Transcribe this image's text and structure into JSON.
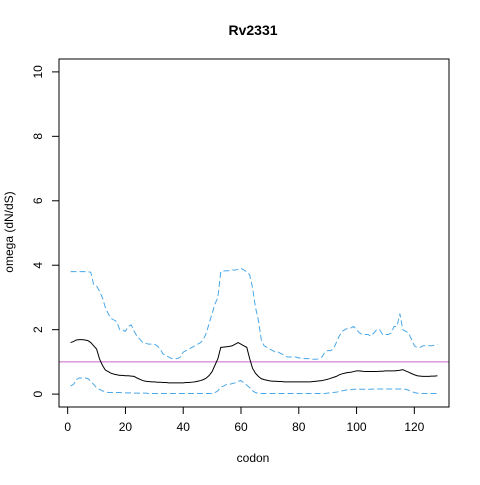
{
  "chart_data": {
    "type": "line",
    "title": "Rv2331",
    "xlabel": "codon",
    "ylabel": "omega (dN/dS)",
    "xlim": [
      -3,
      132
    ],
    "ylim": [
      -0.4,
      10.4
    ],
    "x_ticks": [
      0,
      20,
      40,
      60,
      80,
      100,
      120
    ],
    "y_ticks": [
      0,
      2,
      4,
      6,
      8,
      10
    ],
    "reference_line": {
      "y": 1.0,
      "color": "#cc66cc"
    },
    "colors": {
      "estimate": "#000000",
      "bounds": "#4aa8e8"
    },
    "x": [
      1,
      2,
      3,
      4,
      5,
      6,
      7,
      8,
      9,
      10,
      11,
      12,
      13,
      14,
      15,
      16,
      17,
      18,
      19,
      20,
      21,
      22,
      23,
      24,
      25,
      26,
      27,
      28,
      29,
      30,
      31,
      32,
      33,
      34,
      35,
      36,
      37,
      38,
      39,
      40,
      41,
      42,
      43,
      44,
      45,
      46,
      47,
      48,
      49,
      50,
      51,
      52,
      53,
      54,
      55,
      56,
      57,
      58,
      59,
      60,
      61,
      62,
      63,
      64,
      65,
      66,
      67,
      68,
      69,
      70,
      71,
      72,
      73,
      74,
      75,
      76,
      77,
      78,
      79,
      80,
      81,
      82,
      83,
      84,
      85,
      86,
      87,
      88,
      89,
      90,
      91,
      92,
      93,
      94,
      95,
      96,
      97,
      98,
      99,
      100,
      101,
      102,
      103,
      104,
      105,
      106,
      107,
      108,
      109,
      110,
      111,
      112,
      113,
      114,
      115,
      116,
      117,
      118,
      119,
      120,
      121,
      122,
      123,
      124,
      125,
      126,
      127,
      128
    ],
    "series": [
      {
        "role": "estimate",
        "values": [
          1.6,
          1.63,
          1.68,
          1.69,
          1.69,
          1.68,
          1.66,
          1.6,
          1.5,
          1.4,
          1.1,
          0.9,
          0.75,
          0.7,
          0.65,
          0.62,
          0.6,
          0.58,
          0.58,
          0.57,
          0.57,
          0.56,
          0.55,
          0.5,
          0.46,
          0.42,
          0.4,
          0.39,
          0.38,
          0.38,
          0.37,
          0.37,
          0.36,
          0.36,
          0.35,
          0.35,
          0.35,
          0.35,
          0.35,
          0.35,
          0.36,
          0.36,
          0.37,
          0.38,
          0.4,
          0.42,
          0.45,
          0.5,
          0.58,
          0.7,
          0.9,
          1.1,
          1.45,
          1.46,
          1.47,
          1.48,
          1.5,
          1.55,
          1.6,
          1.55,
          1.5,
          1.45,
          1.1,
          0.8,
          0.65,
          0.55,
          0.48,
          0.45,
          0.43,
          0.41,
          0.4,
          0.4,
          0.39,
          0.39,
          0.38,
          0.38,
          0.38,
          0.38,
          0.38,
          0.38,
          0.38,
          0.38,
          0.38,
          0.38,
          0.39,
          0.4,
          0.41,
          0.42,
          0.44,
          0.46,
          0.49,
          0.52,
          0.55,
          0.6,
          0.63,
          0.65,
          0.67,
          0.68,
          0.7,
          0.72,
          0.72,
          0.71,
          0.7,
          0.7,
          0.7,
          0.7,
          0.7,
          0.71,
          0.71,
          0.72,
          0.72,
          0.72,
          0.72,
          0.73,
          0.74,
          0.76,
          0.72,
          0.68,
          0.64,
          0.6,
          0.57,
          0.56,
          0.55,
          0.55,
          0.55,
          0.56,
          0.56,
          0.57
        ]
      },
      {
        "role": "upper bound",
        "values": [
          3.8,
          3.8,
          3.8,
          3.8,
          3.8,
          3.8,
          3.8,
          3.78,
          3.4,
          3.35,
          3.2,
          3.0,
          2.7,
          2.5,
          2.35,
          2.3,
          2.25,
          2.0,
          1.98,
          1.95,
          2.1,
          2.15,
          1.95,
          1.8,
          1.7,
          1.6,
          1.58,
          1.55,
          1.55,
          1.55,
          1.5,
          1.4,
          1.25,
          1.2,
          1.15,
          1.1,
          1.1,
          1.1,
          1.15,
          1.3,
          1.35,
          1.4,
          1.45,
          1.5,
          1.55,
          1.6,
          1.7,
          1.9,
          2.2,
          2.5,
          2.8,
          3.0,
          3.8,
          3.82,
          3.83,
          3.83,
          3.85,
          3.85,
          3.87,
          3.9,
          3.85,
          3.8,
          3.7,
          3.3,
          2.7,
          2.3,
          1.7,
          1.5,
          1.45,
          1.4,
          1.35,
          1.3,
          1.3,
          1.25,
          1.2,
          1.15,
          1.15,
          1.15,
          1.15,
          1.12,
          1.12,
          1.1,
          1.1,
          1.1,
          1.08,
          1.08,
          1.1,
          1.15,
          1.3,
          1.35,
          1.35,
          1.4,
          1.6,
          1.8,
          1.95,
          2.0,
          2.05,
          2.05,
          2.1,
          2.0,
          1.9,
          1.85,
          1.85,
          1.85,
          1.8,
          1.9,
          2.0,
          2.0,
          1.85,
          1.85,
          1.85,
          1.9,
          2.1,
          2.1,
          2.5,
          2.0,
          1.95,
          1.9,
          1.7,
          1.5,
          1.45,
          1.45,
          1.5,
          1.5,
          1.5,
          1.5,
          1.52,
          1.55
        ]
      },
      {
        "role": "lower bound",
        "values": [
          0.25,
          0.3,
          0.45,
          0.5,
          0.5,
          0.5,
          0.48,
          0.4,
          0.3,
          0.2,
          0.15,
          0.1,
          0.08,
          0.05,
          0.05,
          0.05,
          0.05,
          0.05,
          0.04,
          0.04,
          0.04,
          0.04,
          0.03,
          0.03,
          0.03,
          0.03,
          0.03,
          0.02,
          0.02,
          0.02,
          0.02,
          0.02,
          0.02,
          0.02,
          0.02,
          0.02,
          0.02,
          0.02,
          0.02,
          0.02,
          0.02,
          0.02,
          0.02,
          0.02,
          0.02,
          0.02,
          0.02,
          0.02,
          0.02,
          0.02,
          0.05,
          0.1,
          0.22,
          0.25,
          0.3,
          0.3,
          0.33,
          0.35,
          0.4,
          0.42,
          0.35,
          0.28,
          0.2,
          0.1,
          0.05,
          0.02,
          0.02,
          0.02,
          0.02,
          0.02,
          0.02,
          0.02,
          0.02,
          0.02,
          0.02,
          0.02,
          0.02,
          0.02,
          0.02,
          0.02,
          0.02,
          0.02,
          0.02,
          0.02,
          0.02,
          0.02,
          0.02,
          0.02,
          0.02,
          0.03,
          0.04,
          0.05,
          0.06,
          0.08,
          0.1,
          0.12,
          0.13,
          0.14,
          0.15,
          0.15,
          0.15,
          0.15,
          0.15,
          0.15,
          0.15,
          0.16,
          0.16,
          0.16,
          0.16,
          0.16,
          0.16,
          0.16,
          0.16,
          0.16,
          0.16,
          0.16,
          0.15,
          0.12,
          0.08,
          0.05,
          0.03,
          0.02,
          0.02,
          0.02,
          0.02,
          0.02,
          0.02,
          0.02
        ]
      }
    ]
  }
}
